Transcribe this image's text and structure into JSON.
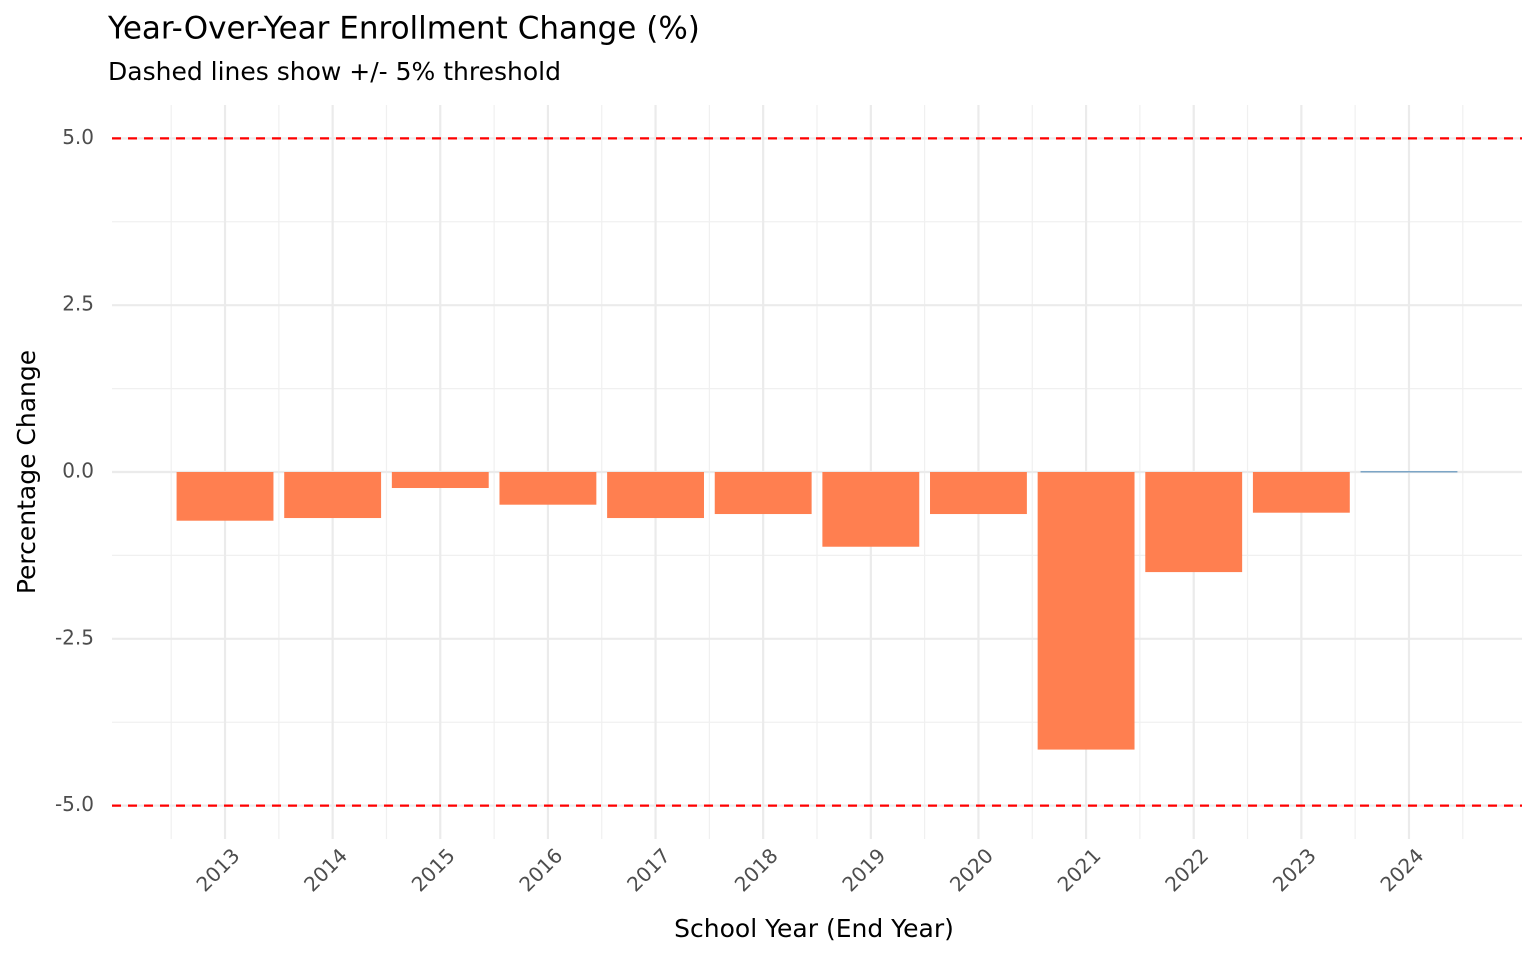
{
  "chart_data": {
    "type": "bar",
    "title": "Year-Over-Year Enrollment Change (%)",
    "subtitle": "Dashed lines show +/- 5% threshold",
    "x_label": "School Year (End Year)",
    "y_label": "Percentage Change",
    "x": [
      2013,
      2014,
      2015,
      2016,
      2017,
      2018,
      2019,
      2020,
      2021,
      2022,
      2023,
      2024
    ],
    "values": [
      -0.73,
      -0.69,
      -0.24,
      -0.49,
      -0.69,
      -0.63,
      -1.12,
      -0.63,
      -4.16,
      -1.5,
      -0.61,
      0.01
    ],
    "colors": [
      "#ff7f50",
      "#ff7f50",
      "#ff7f50",
      "#ff7f50",
      "#ff7f50",
      "#ff7f50",
      "#ff7f50",
      "#ff7f50",
      "#ff7f50",
      "#ff7f50",
      "#ff7f50",
      "#4682b4"
    ],
    "bar_width": 0.9,
    "xlim": [
      2011.95,
      2025.05
    ],
    "xticks": [
      2013,
      2014,
      2015,
      2016,
      2017,
      2018,
      2019,
      2020,
      2021,
      2022,
      2023,
      2024
    ],
    "ylim": [
      -5.5,
      5.5
    ],
    "yticks": [
      {
        "value": -5,
        "label": "-5.0"
      },
      {
        "value": -2.5,
        "label": "-2.5"
      },
      {
        "value": 0,
        "label": "0.0"
      },
      2.5,
      {
        "value": 5,
        "label": "5.0"
      }
    ],
    "reference_lines": [
      5,
      -5
    ],
    "reference_color": "#ff0000",
    "grid": true
  }
}
